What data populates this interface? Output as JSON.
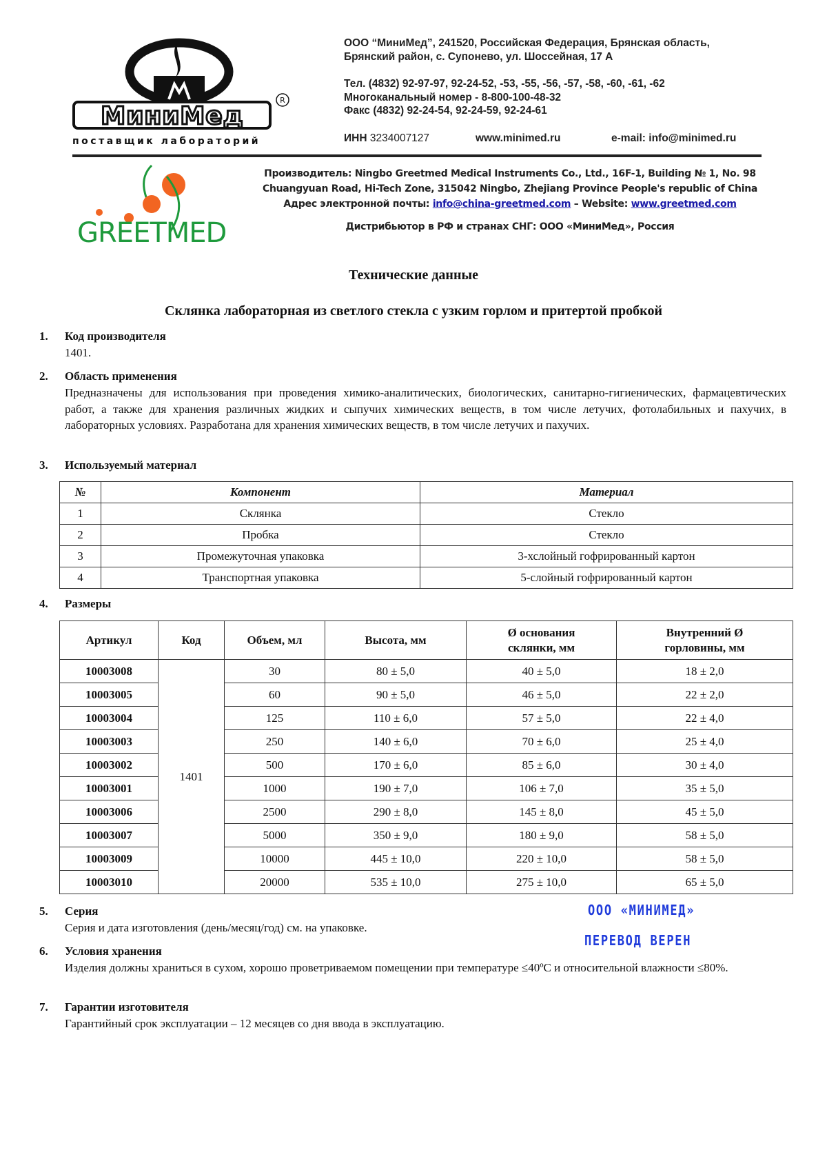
{
  "header": {
    "minimed_logo": {
      "name": "МиниМед",
      "tagline": "поставщик лабораторий",
      "mark": "®"
    },
    "address_line1": "ООО “МиниМед”, 241520, Российская Федерация, Брянская область,",
    "address_line2": "Брянский район, с. Супонево, ул. Шоссейная, 17 А",
    "phone": "Тел. (4832) 92-97-97, 92-24-52, -53, -55, -56, -57, -58, -60, -61, -62",
    "multichannel": "Многоканальный номер - 8-800-100-48-32",
    "fax": "Факс (4832) 92-24-54, 92-24-59, 92-24-61",
    "inn_label": "ИНН",
    "inn": "3234007127",
    "website": "www.minimed.ru",
    "email": "e-mail: info@minimed.ru"
  },
  "manufacturer": {
    "greetmed_logo": "GREETMED",
    "line1": "Производитель: Ningbo Greetmed Medical Instruments Co., Ltd., 16F-1, Building № 1, No. 98",
    "line2": "Chuangyuan Road, Hi-Tech Zone, 315042 Ningbo, Zhejiang Province People's republic of China",
    "email_label": "Адрес электронной почты:",
    "email": "info@china-greetmed.com",
    "website_label": "– Website:",
    "website": "www.greetmed.com",
    "distributor": "Дистрибьютор в РФ и странах СНГ: ООО «МиниМед», Россия"
  },
  "title": "Технические данные",
  "subtitle": "Склянка лабораторная из светлого стекла с узким горлом и притертой пробкой",
  "sections": [
    {
      "num": "1.",
      "heading": "Код производителя",
      "text": "1401."
    },
    {
      "num": "2.",
      "heading": "Область применения",
      "text": "Предназначены для использования при проведения химико-аналитических, биологических, санитарно-гигиенических, фармацевтических работ, а также для хранения различных жидких и сыпучих химических веществ, в том числе летучих, фотолабильных и пахучих, в лабораторных условиях. Разработана для хранения химических веществ, в том числе летучих и пахучих."
    },
    {
      "num": "3.",
      "heading": "Используемый материал"
    },
    {
      "num": "4.",
      "heading": "Размеры"
    },
    {
      "num": "5.",
      "heading": "Серия",
      "text": "Серия и дата изготовления (день/месяц/год) см. на упаковке."
    },
    {
      "num": "6.",
      "heading": "Условия хранения",
      "text": "Изделия должны храниться в сухом, хорошо проветриваемом помещении при температуре ≤40ºC и относительной влажности ≤80%."
    },
    {
      "num": "7.",
      "heading": "Гарантии изготовителя",
      "text": "Гарантийный срок эксплуатации – 12 месяцев со дня ввода в эксплуатацию."
    }
  ],
  "materials_table": {
    "headers": [
      "№",
      "Компонент",
      "Материал"
    ],
    "rows": [
      [
        "1",
        "Склянка",
        "Стекло"
      ],
      [
        "2",
        "Пробка",
        "Стекло"
      ],
      [
        "3",
        "Промежуточная упаковка",
        "3-хслойный гофрированный картон"
      ],
      [
        "4",
        "Транспортная упаковка",
        "5-слойный гофрированный картон"
      ]
    ]
  },
  "sizes_table": {
    "headers": [
      "Артикул",
      "Код",
      "Объем, мл",
      "Высота, мм",
      "Ø основания склянки, мм",
      "Внутренний Ø горловины, мм"
    ],
    "code": "1401",
    "rows": [
      [
        "10003008",
        "30",
        "80 ± 5,0",
        "40 ± 5,0",
        "18 ± 2,0"
      ],
      [
        "10003005",
        "60",
        "90 ± 5,0",
        "46 ± 5,0",
        "22 ± 2,0"
      ],
      [
        "10003004",
        "125",
        "110 ± 6,0",
        "57 ± 5,0",
        "22 ± 4,0"
      ],
      [
        "10003003",
        "250",
        "140 ± 6,0",
        "70 ± 6,0",
        "25 ± 4,0"
      ],
      [
        "10003002",
        "500",
        "170 ± 6,0",
        "85 ± 6,0",
        "30 ± 4,0"
      ],
      [
        "10003001",
        "1000",
        "190 ± 7,0",
        "106 ± 7,0",
        "35 ± 5,0"
      ],
      [
        "10003006",
        "2500",
        "290 ± 8,0",
        "145 ±  8,0",
        "45 ± 5,0"
      ],
      [
        "10003007",
        "5000",
        "350 ± 9,0",
        "180 ± 9,0",
        "58 ± 5,0"
      ],
      [
        "10003009",
        "10000",
        "445 ± 10,0",
        "220 ± 10,0",
        "58 ± 5,0"
      ],
      [
        "10003010",
        "20000",
        "535 ± 10,0",
        "275 ± 10,0",
        "65 ± 5,0"
      ]
    ]
  },
  "stamp": {
    "line1": "ООО «МИНИМЕД»",
    "line2": "ПЕРЕВОД  ВЕРЕН",
    "color": "#1f3bdb"
  },
  "colors": {
    "greetmed_green": "#1e9a3c",
    "greetmed_orange": "#f26522",
    "link": "#1a1aa8"
  }
}
